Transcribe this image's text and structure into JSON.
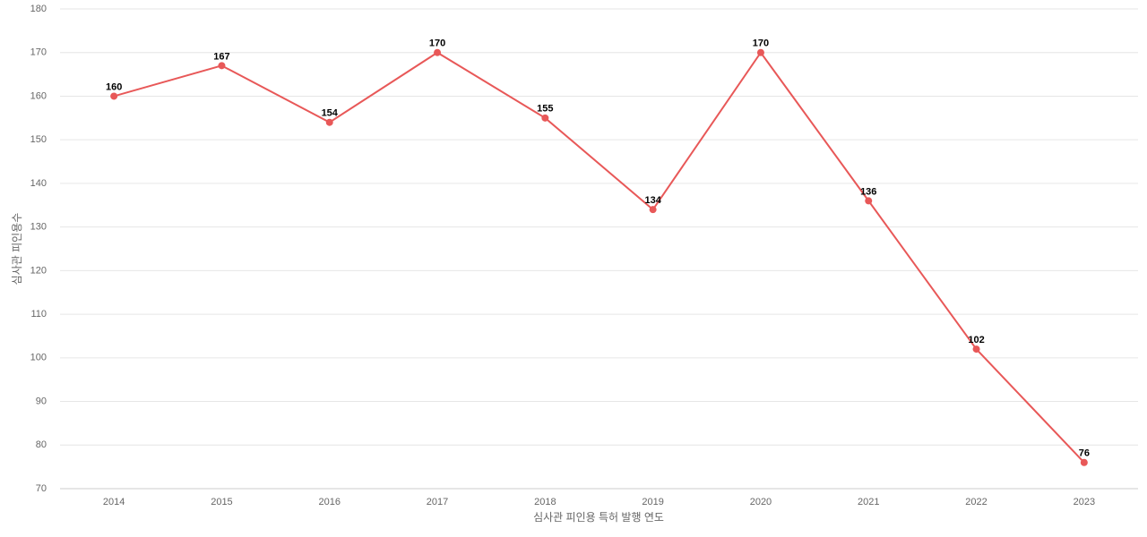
{
  "chart_data": {
    "type": "line",
    "x_label": "심사관 피인용 특허 발행 연도",
    "y_label": "심사관 피인용수",
    "categories": [
      "2014",
      "2015",
      "2016",
      "2017",
      "2018",
      "2019",
      "2020",
      "2021",
      "2022",
      "2023"
    ],
    "series": [
      {
        "name": "심사관 피인용수",
        "color": "#e85858",
        "values": [
          160,
          167,
          154,
          170,
          155,
          134,
          170,
          136,
          102,
          76
        ]
      }
    ],
    "ylim": [
      70,
      180
    ],
    "yticks": [
      70,
      80,
      90,
      100,
      110,
      120,
      130,
      140,
      150,
      160,
      170,
      180
    ],
    "grid": true
  }
}
